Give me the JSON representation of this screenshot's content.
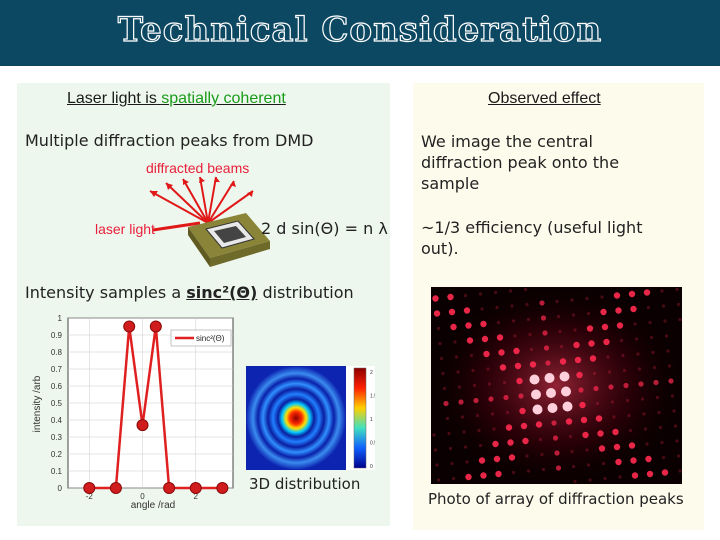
{
  "title": "Technical Consideration",
  "left": {
    "heading_prefix": "Laser light is",
    "heading_highlight": "spatially coherent",
    "line1": "Multiple diffraction peaks from DMD",
    "diffracted_label": "diffracted beams",
    "laser_label": "laser light",
    "equation": "2 d sin(Θ) = n λ",
    "intensity_prefix": "Intensity samples a",
    "intensity_func": "sinc²(Θ)",
    "intensity_suffix": "distribution",
    "distribution_caption": "3D distribution"
  },
  "right": {
    "heading": "Observed effect",
    "text1": "We image the central diffraction peak onto the sample",
    "text2": "~1/3 efficiency (useful light out).",
    "photo_caption": "Photo of array of diffraction peaks"
  },
  "chart_data": {
    "type": "line",
    "xlabel": "angle /rad",
    "ylabel": "intensity /arb",
    "legend": "sinc²(Θ)",
    "x_ticks": [
      "-2",
      "0",
      "2"
    ],
    "y_ticks": [
      "0",
      "0.1",
      "0.2",
      "0.3",
      "0.4",
      "0.5",
      "0.6",
      "0.7",
      "0.8",
      "0.9",
      "1"
    ],
    "ylim": [
      0,
      1
    ],
    "xlim": [
      -2.8,
      3.4
    ],
    "series": [
      {
        "name": "sinc²(Θ)",
        "x": [
          -2.0,
          -1.0,
          -0.5,
          0.0,
          0.5,
          1.0,
          2.0,
          3.0
        ],
        "y": [
          0.0,
          0.0,
          0.95,
          0.37,
          0.95,
          0.0,
          0.0,
          0.0
        ]
      }
    ],
    "colorbar_ticks": [
      "2",
      "1.5",
      "1",
      "0.5",
      "0"
    ],
    "colors": {
      "line": "#e02020",
      "marker": "#d01c1c",
      "grid": "#cccccc"
    }
  }
}
